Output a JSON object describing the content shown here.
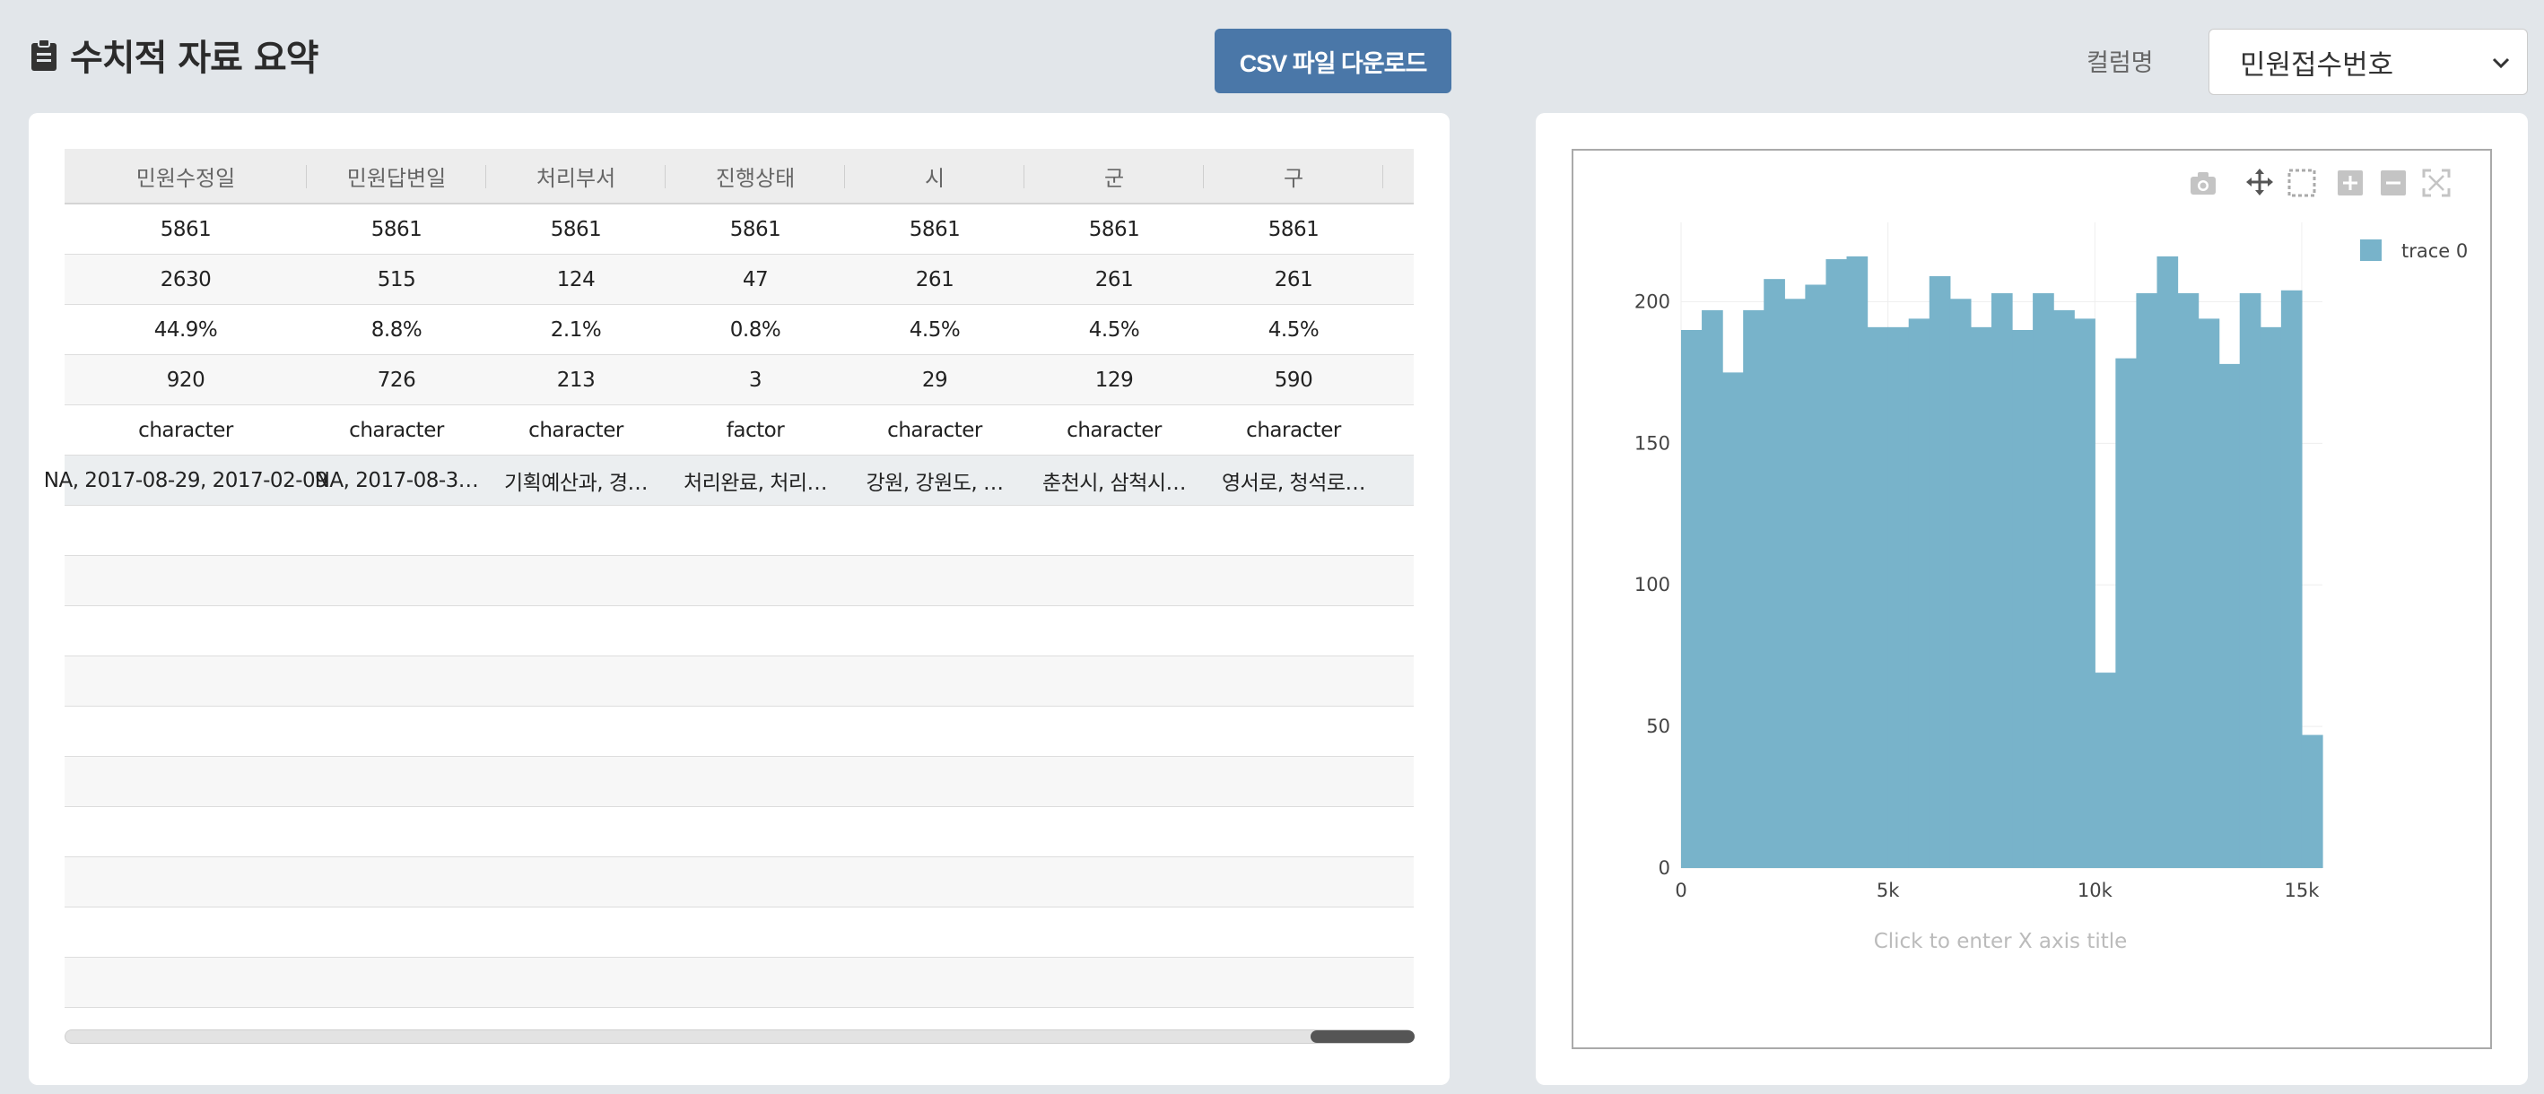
{
  "header": {
    "title": "수치적 자료 요약",
    "csv_button": "CSV 파일 다운로드",
    "column_label": "컬럼명",
    "column_select_value": "민원접수번호"
  },
  "table": {
    "columns": [
      "민원수정일",
      "민원답변일",
      "처리부서",
      "진행상태",
      "시",
      "군",
      "구"
    ],
    "rows": [
      [
        "5861",
        "5861",
        "5861",
        "5861",
        "5861",
        "5861",
        "5861"
      ],
      [
        "2630",
        "515",
        "124",
        "47",
        "261",
        "261",
        "261"
      ],
      [
        "44.9%",
        "8.8%",
        "2.1%",
        "0.8%",
        "4.5%",
        "4.5%",
        "4.5%"
      ],
      [
        "920",
        "726",
        "213",
        "3",
        "29",
        "129",
        "590"
      ],
      [
        "character",
        "character",
        "character",
        "factor",
        "character",
        "character",
        "character"
      ],
      [
        "NA, 2017-08-29, 2017-02-09",
        "NA, 2017-08-3…",
        "기획예산과, 경…",
        "처리완료, 처리…",
        "강원, 강원도, …",
        "춘천시, 삼척시…",
        "영서로, 청석로…"
      ]
    ],
    "empty_rows": 10
  },
  "chart": {
    "modebar": [
      "camera-icon",
      "pan-icon",
      "box-select-icon",
      "zoom-in-icon",
      "zoom-out-icon",
      "autoscale-icon"
    ],
    "x_axis_placeholder": "Click to enter X axis title"
  },
  "chart_data": {
    "type": "bar",
    "subtype": "histogram",
    "series": [
      {
        "name": "trace 0",
        "color": "#78b3ca",
        "bin_width": 500,
        "x_start": 0,
        "values": [
          190,
          197,
          175,
          197,
          208,
          201,
          206,
          215,
          216,
          191,
          191,
          194,
          209,
          201,
          191,
          203,
          190,
          203,
          197,
          194,
          69,
          180,
          203,
          216,
          203,
          194,
          178,
          203,
          191,
          204,
          47
        ]
      }
    ],
    "x_ticks": [
      "0",
      "5k",
      "10k",
      "15k"
    ],
    "x_tick_values": [
      0,
      5000,
      10000,
      15000
    ],
    "y_ticks": [
      "0",
      "50",
      "100",
      "150",
      "200"
    ],
    "y_tick_values": [
      0,
      50,
      100,
      150,
      200
    ],
    "xlim": [
      0,
      15500
    ],
    "ylim": [
      0,
      228
    ],
    "xlabel": "",
    "ylabel": "",
    "grid": true,
    "legend": "top-right"
  }
}
